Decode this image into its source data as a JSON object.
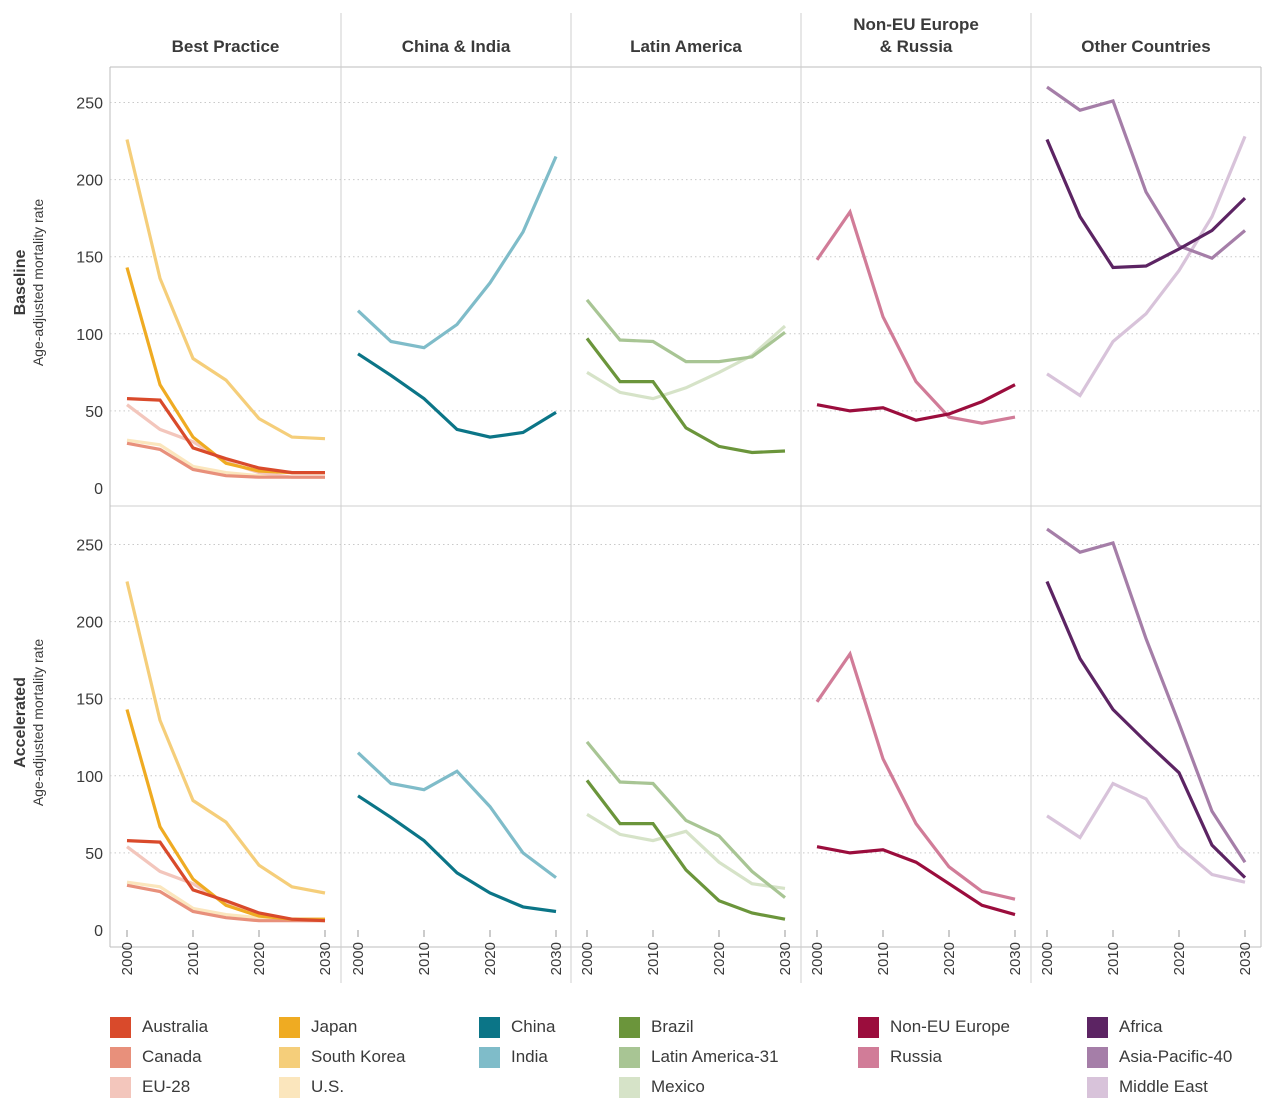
{
  "chart_data": {
    "type": "line",
    "ylabel": "Age-adjusted mortality rate",
    "ylim": [
      0,
      270
    ],
    "yticks": [
      0,
      50,
      100,
      150,
      200,
      250
    ],
    "xlim": [
      1998,
      2032
    ],
    "xticks": [
      2000,
      2010,
      2020,
      2030
    ],
    "x": [
      2000,
      2005,
      2010,
      2015,
      2020,
      2025,
      2030
    ],
    "grid": "horizontal dotted",
    "panels": [
      {
        "title": "Best Practice",
        "series": [
          "Australia",
          "Canada",
          "EU-28",
          "Japan",
          "South Korea",
          "U.S."
        ]
      },
      {
        "title": "China & India",
        "series": [
          "China",
          "India"
        ]
      },
      {
        "title": "Latin America",
        "series": [
          "Brazil",
          "Latin America-31",
          "Mexico"
        ]
      },
      {
        "title": "Non-EU Europe\n& Russia",
        "series": [
          "Non-EU Europe",
          "Russia"
        ]
      },
      {
        "title": "Other Countries",
        "series": [
          "Africa",
          "Asia-Pacific-40",
          "Middle East"
        ]
      }
    ],
    "rows": [
      {
        "title": "Baseline",
        "ylabel": "Age-adjusted mortality rate",
        "series": [
          {
            "name": "South Korea",
            "values": [
              226,
              136,
              84,
              70,
              45,
              33,
              32
            ]
          },
          {
            "name": "U.S.",
            "values": [
              31,
              28,
              14,
              10,
              8,
              7,
              7
            ]
          },
          {
            "name": "EU-28",
            "values": [
              54,
              38,
              30,
              17,
              10,
              7,
              7
            ]
          },
          {
            "name": "Canada",
            "values": [
              29,
              25,
              12,
              8,
              7,
              7,
              7
            ]
          },
          {
            "name": "Japan",
            "values": [
              143,
              67,
              33,
              16,
              11,
              10,
              10
            ]
          },
          {
            "name": "Australia",
            "values": [
              58,
              57,
              26,
              19,
              13,
              10,
              10
            ]
          },
          {
            "name": "India",
            "values": [
              115,
              95,
              91,
              106,
              133,
              166,
              215
            ]
          },
          {
            "name": "China",
            "values": [
              87,
              73,
              58,
              38,
              33,
              36,
              49
            ]
          },
          {
            "name": "Mexico",
            "values": [
              75,
              62,
              58,
              65,
              75,
              86,
              105
            ]
          },
          {
            "name": "Latin America-31",
            "values": [
              122,
              96,
              95,
              82,
              82,
              85,
              101
            ]
          },
          {
            "name": "Brazil",
            "values": [
              97,
              69,
              69,
              39,
              27,
              23,
              24
            ]
          },
          {
            "name": "Russia",
            "values": [
              148,
              179,
              111,
              69,
              46,
              42,
              46
            ]
          },
          {
            "name": "Non-EU Europe",
            "values": [
              54,
              50,
              52,
              44,
              48,
              56,
              67
            ]
          },
          {
            "name": "Middle East",
            "values": [
              74,
              60,
              95,
              113,
              141,
              176,
              228
            ]
          },
          {
            "name": "Asia-Pacific-40",
            "values": [
              260,
              245,
              251,
              192,
              157,
              149,
              167
            ]
          },
          {
            "name": "Africa",
            "values": [
              226,
              176,
              143,
              144,
              155,
              167,
              188
            ]
          }
        ]
      },
      {
        "title": "Accelerated",
        "ylabel": "Age-adjusted mortality rate",
        "series": [
          {
            "name": "South Korea",
            "values": [
              226,
              136,
              84,
              70,
              42,
              28,
              24
            ]
          },
          {
            "name": "U.S.",
            "values": [
              31,
              28,
              14,
              10,
              8,
              7,
              7
            ]
          },
          {
            "name": "EU-28",
            "values": [
              54,
              38,
              30,
              17,
              10,
              7,
              7
            ]
          },
          {
            "name": "Canada",
            "values": [
              29,
              25,
              12,
              8,
              6,
              6,
              6
            ]
          },
          {
            "name": "Japan",
            "values": [
              143,
              67,
              33,
              16,
              9,
              7,
              7
            ]
          },
          {
            "name": "Australia",
            "values": [
              58,
              57,
              26,
              19,
              11,
              7,
              6
            ]
          },
          {
            "name": "India",
            "values": [
              115,
              95,
              91,
              103,
              80,
              50,
              34
            ]
          },
          {
            "name": "China",
            "values": [
              87,
              73,
              58,
              37,
              24,
              15,
              12
            ]
          },
          {
            "name": "Mexico",
            "values": [
              75,
              62,
              58,
              64,
              44,
              30,
              27
            ]
          },
          {
            "name": "Latin America-31",
            "values": [
              122,
              96,
              95,
              71,
              61,
              38,
              21
            ]
          },
          {
            "name": "Brazil",
            "values": [
              97,
              69,
              69,
              39,
              19,
              11,
              7
            ]
          },
          {
            "name": "Russia",
            "values": [
              148,
              179,
              111,
              69,
              41,
              25,
              20
            ]
          },
          {
            "name": "Non-EU Europe",
            "values": [
              54,
              50,
              52,
              44,
              30,
              16,
              10
            ]
          },
          {
            "name": "Middle East",
            "values": [
              74,
              60,
              95,
              85,
              54,
              36,
              31
            ]
          },
          {
            "name": "Asia-Pacific-40",
            "values": [
              260,
              245,
              251,
              189,
              134,
              77,
              44
            ]
          },
          {
            "name": "Africa",
            "values": [
              226,
              176,
              143,
              122,
              102,
              55,
              34
            ]
          }
        ]
      }
    ],
    "colors": {
      "Australia": "#d94a2b",
      "Canada": "#e8907b",
      "EU-28": "#f3c6bc",
      "Japan": "#efab22",
      "South Korea": "#f5ce7a",
      "U.S.": "#fbe6bd",
      "China": "#0b7587",
      "India": "#7fbcc9",
      "Brazil": "#6b953b",
      "Latin America-31": "#a8c594",
      "Mexico": "#d6e3c8",
      "Non-EU Europe": "#9b0d3d",
      "Russia": "#d17c98",
      "Africa": "#5c2463",
      "Asia-Pacific-40": "#a57ea8",
      "Middle East": "#d8c3da"
    },
    "legend": {
      "placement": "bottom",
      "columns": [
        [
          "Australia",
          "Canada",
          "EU-28"
        ],
        [
          "Japan",
          "South Korea",
          "U.S."
        ],
        [
          "China",
          "India"
        ],
        [
          "Brazil",
          "Latin America-31",
          "Mexico"
        ],
        [
          "Non-EU Europe",
          "Russia"
        ],
        [
          "Africa",
          "Asia-Pacific-40",
          "Middle East"
        ]
      ]
    }
  }
}
